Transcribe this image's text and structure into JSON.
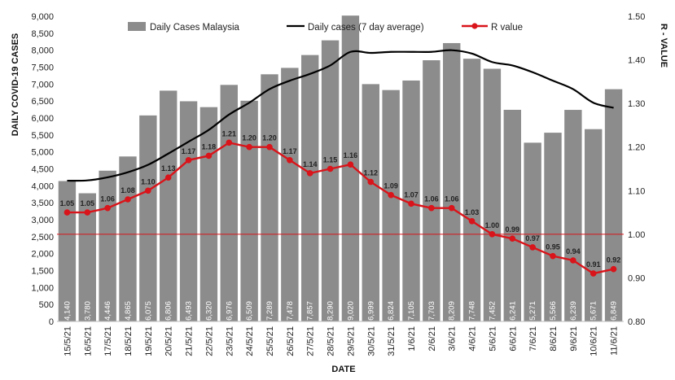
{
  "chart_data": {
    "type": "bar",
    "categories": [
      "15/5/21",
      "16/5/21",
      "17/5/21",
      "18/5/21",
      "19/5/21",
      "20/5/21",
      "21/5/21",
      "22/5/21",
      "23/5/21",
      "24/5/21",
      "25/5/21",
      "26/5/21",
      "27/5/21",
      "28/5/21",
      "29/5/21",
      "30/5/21",
      "31/5/21",
      "1/6/21",
      "2/6/21",
      "3/6/21",
      "4/6/21",
      "5/6/21",
      "6/6/21",
      "7/6/21",
      "8/6/21",
      "9/6/21",
      "10/6/21",
      "11/6/21"
    ],
    "bar_labels": [
      "4,140",
      "3,780",
      "4,446",
      "4,865",
      "6,075",
      "6,806",
      "6,493",
      "6,320",
      "6,976",
      "6,509",
      "7,289",
      "7,478",
      "7,857",
      "8,290",
      "9,020",
      "6,999",
      "6,824",
      "7,105",
      "7,703",
      "8,209",
      "7,748",
      "7,452",
      "6,241",
      "5,271",
      "5,566",
      "6,239",
      "5,671",
      "6,849"
    ],
    "r_labels": [
      "1.05",
      "1.05",
      "1.06",
      "1.08",
      "1.10",
      "1.13",
      "1.17",
      "1.18",
      "1.21",
      "1.20",
      "1.20",
      "1.17",
      "1.14",
      "1.15",
      "1.16",
      "1.12",
      "1.09",
      "1.07",
      "1.06",
      "1.06",
      "1.03",
      "1.00",
      "0.99",
      "0.97",
      "0.95",
      "0.94",
      "0.91",
      "0.92"
    ],
    "series": [
      {
        "name": "Daily Cases Malaysia",
        "type": "bar",
        "axis": "left",
        "color": "#8c8c8c",
        "values": [
          4140,
          3780,
          4446,
          4865,
          6075,
          6806,
          6493,
          6320,
          6976,
          6509,
          7289,
          7478,
          7857,
          8290,
          9020,
          6999,
          6824,
          7105,
          7703,
          8209,
          7748,
          7452,
          6241,
          5271,
          5566,
          6239,
          5671,
          6849
        ]
      },
      {
        "name": "Daily cases (7 day average)",
        "type": "line",
        "axis": "left",
        "color": "#000000",
        "values": [
          4150,
          4160,
          4250,
          4400,
          4620,
          4950,
          5300,
          5650,
          6100,
          6450,
          6850,
          7100,
          7300,
          7550,
          7950,
          7920,
          7950,
          7950,
          7950,
          8000,
          7900,
          7650,
          7550,
          7350,
          7100,
          6850,
          6450,
          6300
        ]
      },
      {
        "name": "R value",
        "type": "line",
        "axis": "right",
        "color": "#d9141a",
        "values": [
          1.05,
          1.05,
          1.06,
          1.08,
          1.1,
          1.13,
          1.17,
          1.18,
          1.21,
          1.2,
          1.2,
          1.17,
          1.14,
          1.15,
          1.16,
          1.12,
          1.09,
          1.07,
          1.06,
          1.06,
          1.03,
          1.0,
          0.99,
          0.97,
          0.95,
          0.94,
          0.91,
          0.92
        ]
      }
    ],
    "reference_line": {
      "axis": "right",
      "value": 1.0,
      "color": "#d9141a"
    },
    "left_axis": {
      "label": "DAILY COVID-19 CASES",
      "min": 0,
      "max": 9000,
      "step": 500,
      "tick_labels": [
        "0",
        "500",
        "1,000",
        "1,500",
        "2,000",
        "2,500",
        "3,000",
        "3,500",
        "4,000",
        "4,500",
        "5,000",
        "5,500",
        "6,000",
        "6,500",
        "7,000",
        "7,500",
        "8,000",
        "8,500",
        "9,000"
      ]
    },
    "right_axis": {
      "label": "R - VALUE",
      "min": 0.8,
      "max": 1.5,
      "step": 0.1,
      "tick_labels": [
        "0.80",
        "0.90",
        "1.00",
        "1.10",
        "1.20",
        "1.30",
        "1.40",
        "1.50"
      ]
    },
    "xlabel": "DATE",
    "legend": {
      "placement": "top",
      "entries": [
        "Daily Cases Malaysia",
        "Daily cases (7 day average)",
        "R value"
      ]
    }
  }
}
